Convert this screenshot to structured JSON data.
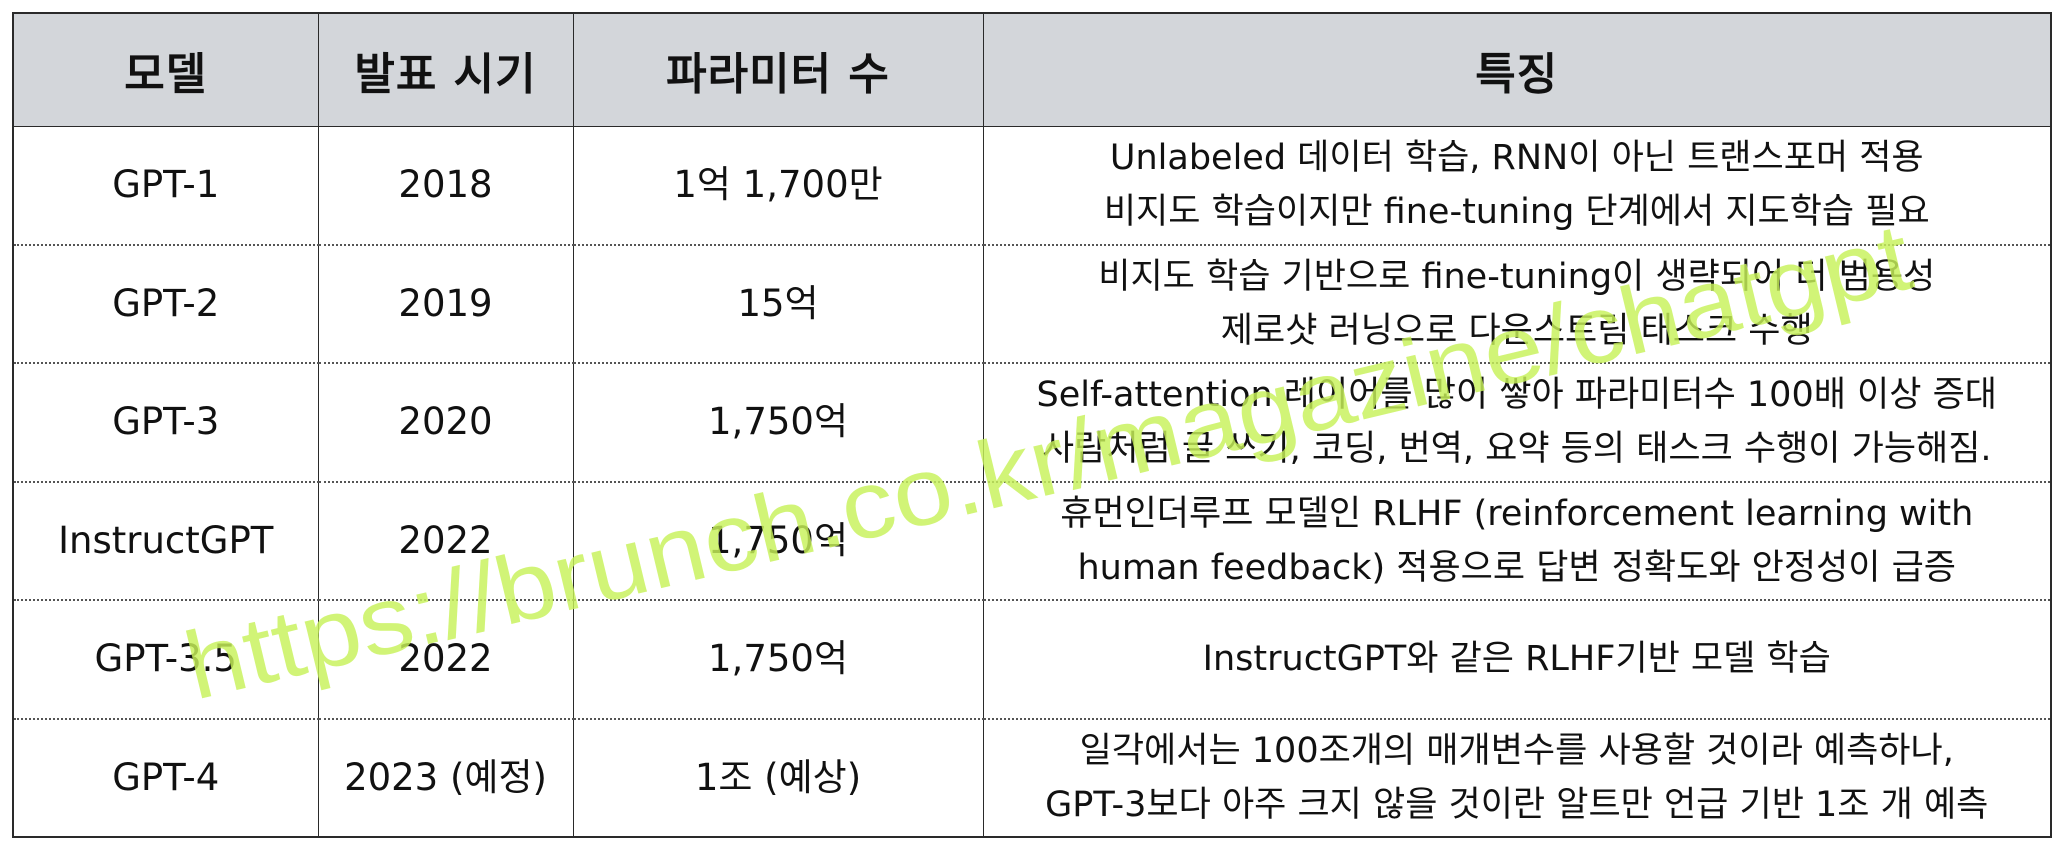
{
  "table": {
    "headers": [
      "모델",
      "발표 시기",
      "파라미터 수",
      "특징"
    ],
    "rows": [
      {
        "model": "GPT-1",
        "year": "2018",
        "params": "1억 1,700만",
        "features": [
          "Unlabeled 데이터 학습, RNN이 아닌 트랜스포머 적용",
          "비지도 학습이지만 fine-tuning 단계에서 지도학습 필요"
        ]
      },
      {
        "model": "GPT-2",
        "year": "2019",
        "params": "15억",
        "features": [
          "비지도 학습 기반으로 fine-tuning이 생략되어 더 범용성",
          "제로샷 러닝으로 다운스트림 태스크 수행"
        ]
      },
      {
        "model": "GPT-3",
        "year": "2020",
        "params": "1,750억",
        "features": [
          "Self-attention 레이어를 많이 쌓아 파라미터수 100배 이상 증대",
          "사람처럼 글 쓰기, 코딩, 번역, 요약 등의 태스크 수행이 가능해짐."
        ]
      },
      {
        "model": "InstructGPT",
        "year": "2022",
        "params": "1,750억",
        "features": [
          "휴먼인더루프 모델인 RLHF (reinforcement learning with",
          "human feedback) 적용으로 답변 정확도와 안정성이 급증"
        ]
      },
      {
        "model": "GPT-3.5",
        "year": "2022",
        "params": "1,750억",
        "features": [
          "InstructGPT와 같은 RLHF기반 모델 학습",
          ""
        ]
      },
      {
        "model": "GPT-4",
        "year": "2023 (예정)",
        "params": "1조 (예상)",
        "features": [
          "일각에서는 100조개의 매개변수를 사용할 것이라 예측하나,",
          "GPT-3보다 아주 크지 않을 것이란 알트만 언급 기반 1조 개 예측"
        ]
      }
    ]
  },
  "watermark": {
    "text": "https://brunch.co.kr/magazine/chatgpt",
    "color": "#c8f25a"
  }
}
